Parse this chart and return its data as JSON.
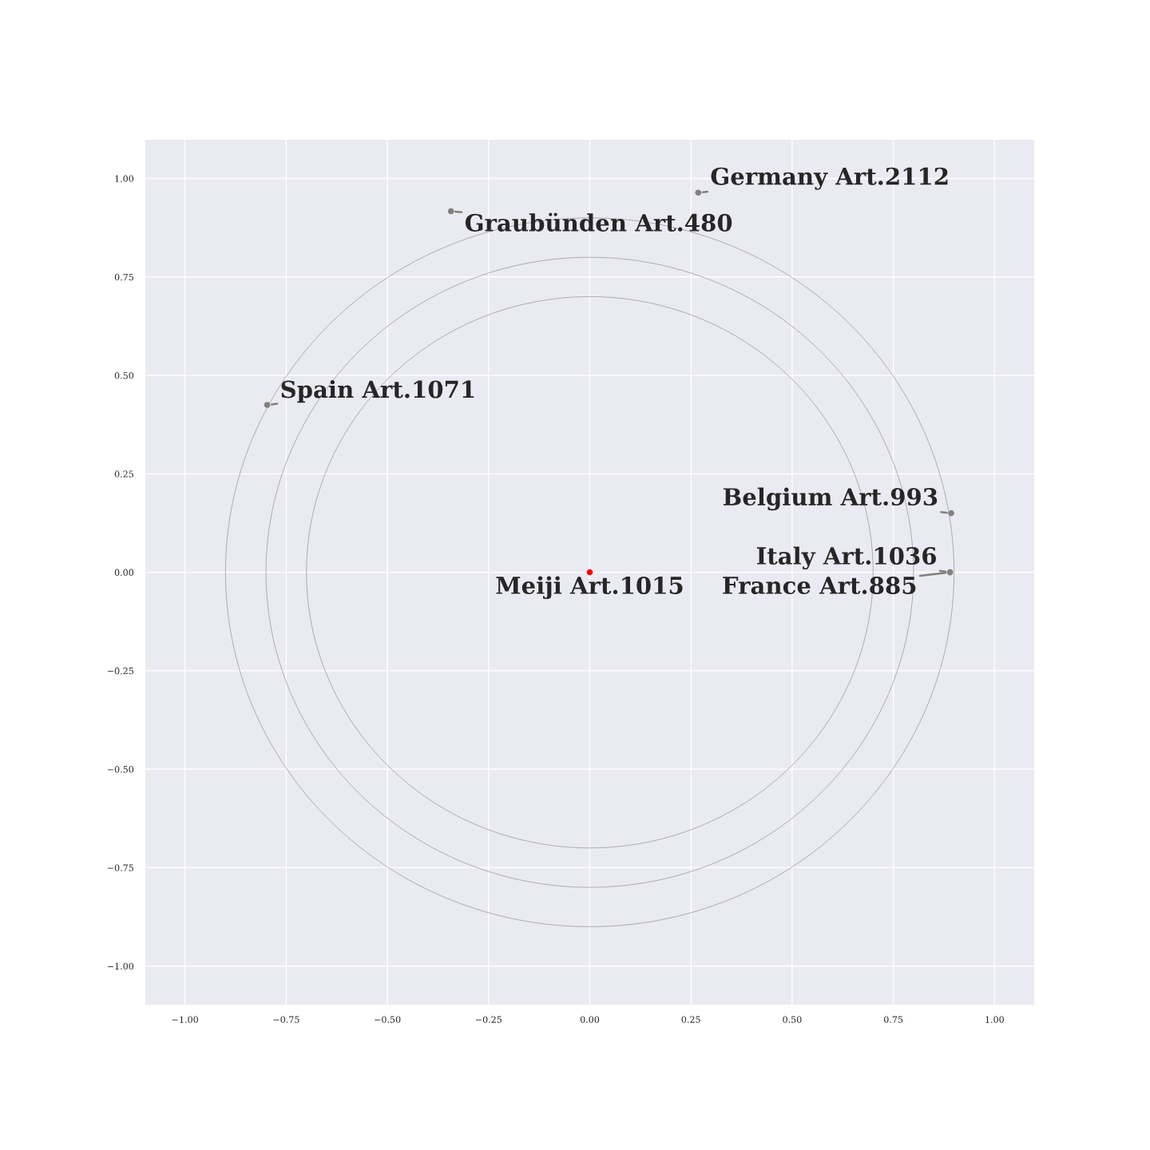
{
  "chart_data": {
    "type": "scatter",
    "grid": true,
    "marker": "circle",
    "xlim": [
      -1.1,
      1.1
    ],
    "ylim": [
      -1.1,
      1.1
    ],
    "xticks": [
      {
        "value": -1,
        "label": "−1.00"
      },
      {
        "value": -0.75,
        "label": "−0.75"
      },
      {
        "value": -0.5,
        "label": "−0.50"
      },
      {
        "value": -0.25,
        "label": "−0.25"
      },
      {
        "value": 0,
        "label": "0.00"
      },
      {
        "value": 0.25,
        "label": "0.25"
      },
      {
        "value": 0.5,
        "label": "0.50"
      },
      {
        "value": 0.75,
        "label": "0.75"
      },
      {
        "value": 1,
        "label": "1.00"
      }
    ],
    "yticks": [
      {
        "value": -1,
        "label": "−1.00"
      },
      {
        "value": -0.75,
        "label": "−0.75"
      },
      {
        "value": -0.5,
        "label": "−0.50"
      },
      {
        "value": -0.25,
        "label": "−0.25"
      },
      {
        "value": 0,
        "label": "0.00"
      },
      {
        "value": 0.25,
        "label": "0.25"
      },
      {
        "value": 0.5,
        "label": "0.50"
      },
      {
        "value": 0.75,
        "label": "0.75"
      },
      {
        "value": 1,
        "label": "1.00"
      }
    ],
    "series": [
      {
        "x": [
          0,
          0.268,
          -0.343,
          -0.797,
          0.893,
          0.89,
          0.89
        ],
        "values": [
          0,
          0.964,
          0.917,
          0.425,
          0.15,
          0,
          0
        ],
        "colors": [
          "#ff0000",
          "#808080",
          "#808080",
          "#808080",
          "#808080",
          "#808080",
          "#808080"
        ]
      }
    ],
    "annotations": [
      {
        "text": "Meiji Art.1015",
        "x": 0,
        "y": 0
      },
      {
        "text": "Germany Art.2112",
        "x": 0.268,
        "y": 0.964
      },
      {
        "text": "Graubünden Art.480",
        "x": -0.343,
        "y": 0.917
      },
      {
        "text": "Spain Art.1071",
        "x": -0.797,
        "y": 0.425
      },
      {
        "text": "Belgium Art.993",
        "x": 0.893,
        "y": 0.15
      },
      {
        "text": "Italy Art.1036",
        "x": 0.89,
        "y": 0
      },
      {
        "text": "France Art.885",
        "x": 0.89,
        "y": 0
      }
    ]
  }
}
